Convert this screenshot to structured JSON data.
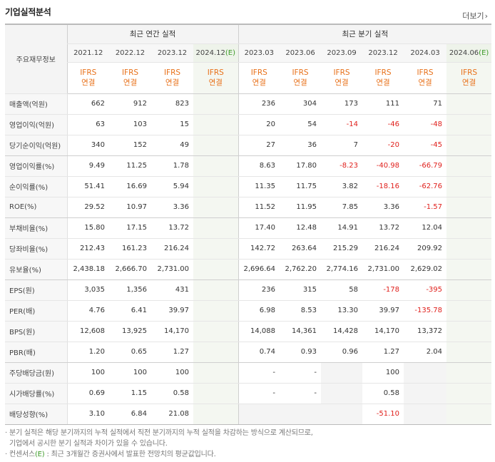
{
  "header": {
    "title": "기업실적분석",
    "more_label": "더보기"
  },
  "table": {
    "row_header_label": "주요재무정보",
    "group_annual": "최근 연간 실적",
    "group_quarter": "최근 분기 실적",
    "annual_periods": [
      "2021.12",
      "2022.12",
      "2023.12",
      "2024.12"
    ],
    "quarter_periods": [
      "2023.03",
      "2023.06",
      "2023.09",
      "2023.12",
      "2024.03",
      "2024.06"
    ],
    "estimate_mark": "(E)",
    "ifrs_top": "IFRS",
    "ifrs_bottom": "연결",
    "rows": [
      {
        "label": "매출액(억원)",
        "annual": [
          "662",
          "912",
          "823",
          ""
        ],
        "quarter": [
          "236",
          "304",
          "173",
          "111",
          "71",
          ""
        ]
      },
      {
        "label": "영업이익(억원)",
        "annual": [
          "63",
          "103",
          "15",
          ""
        ],
        "quarter": [
          "20",
          "54",
          "-14",
          "-46",
          "-48",
          ""
        ]
      },
      {
        "label": "당기순이익(억원)",
        "annual": [
          "340",
          "152",
          "49",
          ""
        ],
        "quarter": [
          "27",
          "36",
          "7",
          "-20",
          "-45",
          ""
        ]
      },
      {
        "label": "영업이익률(%)",
        "annual": [
          "9.49",
          "11.25",
          "1.78",
          ""
        ],
        "quarter": [
          "8.63",
          "17.80",
          "-8.23",
          "-40.98",
          "-66.79",
          ""
        ]
      },
      {
        "label": "순이익률(%)",
        "annual": [
          "51.41",
          "16.69",
          "5.94",
          ""
        ],
        "quarter": [
          "11.35",
          "11.75",
          "3.82",
          "-18.16",
          "-62.76",
          ""
        ]
      },
      {
        "label": "ROE(%)",
        "annual": [
          "29.52",
          "10.97",
          "3.36",
          ""
        ],
        "quarter": [
          "11.52",
          "11.95",
          "7.85",
          "3.36",
          "-1.57",
          ""
        ]
      },
      {
        "label": "부채비율(%)",
        "annual": [
          "15.80",
          "17.15",
          "13.72",
          ""
        ],
        "quarter": [
          "17.40",
          "12.48",
          "14.91",
          "13.72",
          "12.04",
          ""
        ]
      },
      {
        "label": "당좌비율(%)",
        "annual": [
          "212.43",
          "161.23",
          "216.24",
          ""
        ],
        "quarter": [
          "142.72",
          "263.64",
          "215.29",
          "216.24",
          "209.92",
          ""
        ]
      },
      {
        "label": "유보율(%)",
        "annual": [
          "2,438.18",
          "2,666.70",
          "2,731.00",
          ""
        ],
        "quarter": [
          "2,696.64",
          "2,762.20",
          "2,774.16",
          "2,731.00",
          "2,629.02",
          ""
        ]
      },
      {
        "label": "EPS(원)",
        "annual": [
          "3,035",
          "1,356",
          "431",
          ""
        ],
        "quarter": [
          "236",
          "315",
          "58",
          "-178",
          "-395",
          ""
        ]
      },
      {
        "label": "PER(배)",
        "annual": [
          "4.76",
          "6.41",
          "39.97",
          ""
        ],
        "quarter": [
          "6.98",
          "8.53",
          "13.30",
          "39.97",
          "-135.78",
          ""
        ]
      },
      {
        "label": "BPS(원)",
        "annual": [
          "12,608",
          "13,925",
          "14,170",
          ""
        ],
        "quarter": [
          "14,088",
          "14,361",
          "14,428",
          "14,170",
          "13,372",
          ""
        ]
      },
      {
        "label": "PBR(배)",
        "annual": [
          "1.20",
          "0.65",
          "1.27",
          ""
        ],
        "quarter": [
          "0.74",
          "0.93",
          "0.96",
          "1.27",
          "2.04",
          ""
        ]
      },
      {
        "label": "주당배당금(원)",
        "annual": [
          "100",
          "100",
          "100",
          ""
        ],
        "quarter": [
          "-",
          "-",
          "",
          "100",
          "",
          ""
        ]
      },
      {
        "label": "시가배당률(%)",
        "annual": [
          "0.69",
          "1.15",
          "0.58",
          ""
        ],
        "quarter": [
          "-",
          "-",
          "",
          "0.58",
          "",
          ""
        ]
      },
      {
        "label": "배당성향(%)",
        "annual": [
          "3.10",
          "6.84",
          "21.08",
          ""
        ],
        "quarter": [
          "",
          "",
          "",
          "-51.10",
          "",
          ""
        ]
      }
    ]
  },
  "notes": {
    "line1": "· 분기 실적은 해당 분기까지의 누적 실적에서 직전 분기까지의 누적 실적을 차감하는 방식으로 계산되므로,",
    "line2": "  기업에서 공시한 분기 실적과 차이가 있을 수 있습니다.",
    "line3_prefix": "· 컨센서스",
    "line3_mark": "(E)",
    "line3_suffix": " : 최근 3개월간 증권사에서 발표한 전망치의 평균값입니다."
  },
  "colors": {
    "negative": "#e0211d",
    "ifrs": "#e8711a",
    "estimate": "#3c9a27"
  }
}
